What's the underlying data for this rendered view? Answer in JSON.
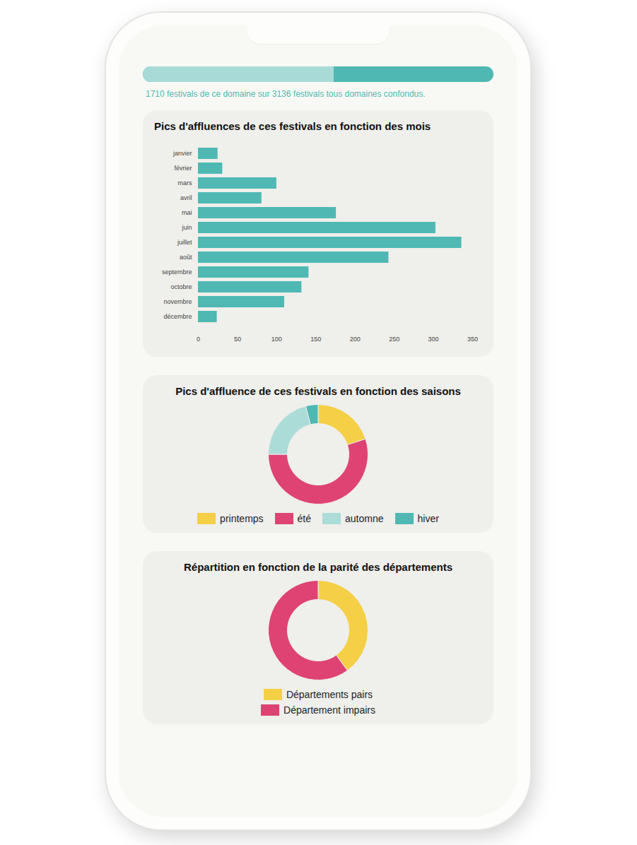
{
  "chart_data": [
    {
      "type": "progress",
      "caption": "1710 festivals de ce domaine sur 3136 festivals tous domaines confondus.",
      "value": 1710,
      "total": 3136,
      "colors": [
        "#a8dbd8",
        "#4fb8b3"
      ]
    },
    {
      "type": "bar",
      "orientation": "horizontal",
      "title": "Pics d'affluences de ces festivals en fonction des mois",
      "categories": [
        "janvier",
        "février",
        "mars",
        "avril",
        "mai",
        "juin",
        "juillet",
        "août",
        "septembre",
        "octobre",
        "novembre",
        "décembre"
      ],
      "values": [
        25,
        31,
        100,
        81,
        176,
        303,
        336,
        243,
        141,
        132,
        110,
        24
      ],
      "color": "#4fb8b3",
      "xlim": [
        0,
        350
      ],
      "xticks": [
        0,
        50,
        100,
        150,
        200,
        250,
        300,
        350
      ],
      "grid": false
    },
    {
      "type": "pie",
      "title": "Pics d'affluence de ces festivals en fonction des saisons",
      "categories": [
        "printemps",
        "été",
        "automne",
        "hiver"
      ],
      "values": [
        20,
        55,
        21,
        4
      ],
      "colors": [
        "#f5cf45",
        "#de4373",
        "#abdcd8",
        "#4fb8b3"
      ],
      "legend": "bottom"
    },
    {
      "type": "pie",
      "title": "Répartition en fonction de la parité des départements",
      "categories": [
        "Départements pairs",
        "Département impairs"
      ],
      "values": [
        40,
        60
      ],
      "colors": [
        "#f5cf45",
        "#de4373"
      ],
      "legend": "bottom"
    }
  ]
}
